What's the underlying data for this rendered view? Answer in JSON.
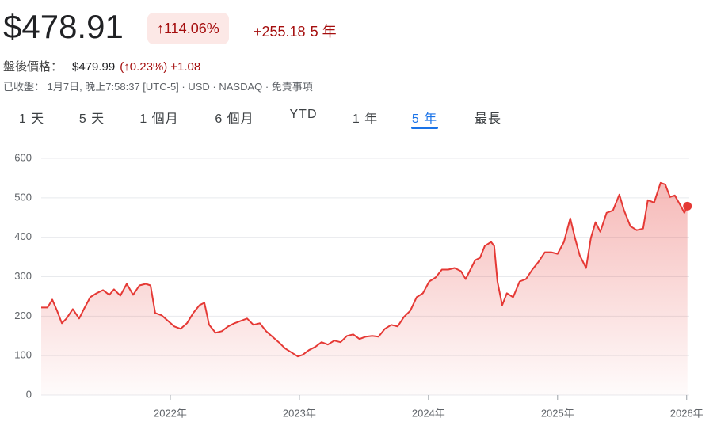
{
  "header": {
    "price": "$478.91",
    "change_pct": "↑114.06%",
    "change_abs": "+255.18",
    "period": "5 年"
  },
  "after_hours": {
    "label": "盤後價格：",
    "price": "$479.99",
    "change_pct": "(↑0.23%)",
    "change_abs": "+1.08"
  },
  "status": "已收盤： 1月7日, 晚上7:58:37 [UTC-5] · USD · NASDAQ · 免責事項",
  "tabs": [
    "1 天",
    "5 天",
    "1 個月",
    "6 個月",
    "YTD",
    "1 年",
    "5 年",
    "最長"
  ],
  "chart_data": {
    "type": "line",
    "color": "#e53935",
    "grid": true,
    "xlim": [
      2021,
      2026.02
    ],
    "ylim": [
      0,
      600
    ],
    "xticks": [
      {
        "value": 2022,
        "label": "2022年"
      },
      {
        "value": 2023,
        "label": "2023年"
      },
      {
        "value": 2024,
        "label": "2024年"
      },
      {
        "value": 2025,
        "label": "2025年"
      },
      {
        "value": 2026,
        "label": "2026年"
      }
    ],
    "yticks": [
      0,
      100,
      200,
      300,
      400,
      500,
      600
    ],
    "x": [
      2021.0,
      2021.049,
      2021.086,
      2021.123,
      2021.16,
      2021.196,
      2021.245,
      2021.294,
      2021.331,
      2021.38,
      2021.429,
      2021.479,
      2021.528,
      2021.564,
      2021.613,
      2021.663,
      2021.712,
      2021.761,
      2021.81,
      2021.847,
      2021.883,
      2021.933,
      2021.982,
      2022.031,
      2022.08,
      2022.129,
      2022.178,
      2022.227,
      2022.264,
      2022.301,
      2022.35,
      2022.399,
      2022.448,
      2022.497,
      2022.546,
      2022.595,
      2022.644,
      2022.693,
      2022.742,
      2022.791,
      2022.84,
      2022.89,
      2022.939,
      2022.988,
      2023.025,
      2023.074,
      2023.123,
      2023.172,
      2023.221,
      2023.27,
      2023.319,
      2023.368,
      2023.417,
      2023.466,
      2023.515,
      2023.564,
      2023.613,
      2023.663,
      2023.712,
      2023.761,
      2023.81,
      2023.859,
      2023.908,
      2023.957,
      2024.006,
      2024.055,
      2024.104,
      2024.153,
      2024.202,
      2024.252,
      2024.288,
      2024.325,
      2024.362,
      2024.399,
      2024.436,
      2024.485,
      2024.509,
      2024.534,
      2024.571,
      2024.607,
      2024.656,
      2024.706,
      2024.755,
      2024.804,
      2024.853,
      2024.902,
      2024.951,
      2025.0,
      2025.049,
      2025.098,
      2025.135,
      2025.172,
      2025.221,
      2025.258,
      2025.294,
      2025.331,
      2025.38,
      2025.429,
      2025.479,
      2025.515,
      2025.564,
      2025.613,
      2025.663,
      2025.699,
      2025.748,
      2025.798,
      2025.834,
      2025.871,
      2025.908,
      2025.957,
      2025.982,
      2026.006
    ],
    "values": [
      222,
      222,
      242,
      214,
      182,
      194,
      218,
      194,
      218,
      248,
      258,
      266,
      254,
      268,
      252,
      282,
      254,
      278,
      282,
      278,
      208,
      202,
      188,
      174,
      168,
      182,
      208,
      228,
      234,
      178,
      158,
      162,
      174,
      182,
      188,
      194,
      178,
      182,
      162,
      148,
      134,
      118,
      108,
      98,
      102,
      114,
      122,
      134,
      128,
      138,
      134,
      150,
      154,
      142,
      148,
      150,
      148,
      168,
      178,
      174,
      198,
      214,
      248,
      258,
      288,
      298,
      318,
      318,
      322,
      314,
      294,
      318,
      342,
      348,
      378,
      388,
      378,
      288,
      228,
      258,
      248,
      288,
      294,
      318,
      338,
      362,
      362,
      358,
      388,
      448,
      398,
      354,
      322,
      398,
      438,
      414,
      462,
      468,
      508,
      468,
      428,
      418,
      422,
      494,
      488,
      538,
      534,
      502,
      506,
      478,
      462,
      478.91
    ]
  }
}
